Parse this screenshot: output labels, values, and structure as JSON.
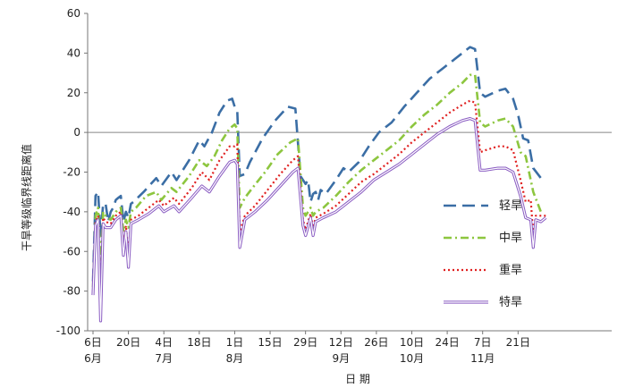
{
  "chart_data": {
    "type": "line",
    "ylabel": "干旱等级临界线距离值",
    "xlabel": "日 期",
    "ylim": [
      -100,
      60
    ],
    "yticks": [
      60,
      40,
      20,
      0,
      -20,
      -40,
      -60,
      -80,
      -100
    ],
    "xlim": [
      "06-06",
      "12-28"
    ],
    "xticks": [
      {
        "date": "06-06",
        "day": "6日",
        "month": "6月"
      },
      {
        "date": "06-20",
        "day": "20日",
        "month": ""
      },
      {
        "date": "07-04",
        "day": "4日",
        "month": "7月"
      },
      {
        "date": "07-18",
        "day": "18日",
        "month": ""
      },
      {
        "date": "08-01",
        "day": "1日",
        "month": "8月"
      },
      {
        "date": "08-15",
        "day": "15日",
        "month": ""
      },
      {
        "date": "08-29",
        "day": "29日",
        "month": ""
      },
      {
        "date": "09-12",
        "day": "12日",
        "month": "9月"
      },
      {
        "date": "09-26",
        "day": "26日",
        "month": ""
      },
      {
        "date": "10-10",
        "day": "10日",
        "month": "10月"
      },
      {
        "date": "10-24",
        "day": "24日",
        "month": ""
      },
      {
        "date": "11-07",
        "day": "7日",
        "month": "11月"
      },
      {
        "date": "11-21",
        "day": "21日",
        "month": ""
      }
    ],
    "legend_position": "right",
    "series": [
      {
        "name": "轻旱",
        "color": "#3b6ea5",
        "dash": "long-dash",
        "points": [
          [
            "06-06",
            -75
          ],
          [
            "06-07",
            -32
          ],
          [
            "06-08",
            -30
          ],
          [
            "06-09",
            -52
          ],
          [
            "06-10",
            -36
          ],
          [
            "06-11",
            -36
          ],
          [
            "06-12",
            -45
          ],
          [
            "06-13",
            -40
          ],
          [
            "06-14",
            -38
          ],
          [
            "06-15",
            -34
          ],
          [
            "06-16",
            -33
          ],
          [
            "06-17",
            -32
          ],
          [
            "06-18",
            -45
          ],
          [
            "06-19",
            -40
          ],
          [
            "06-20",
            -43
          ],
          [
            "06-21",
            -36
          ],
          [
            "06-22",
            -35
          ],
          [
            "06-26",
            -30
          ],
          [
            "07-01",
            -23
          ],
          [
            "07-03",
            -27
          ],
          [
            "07-07",
            -20
          ],
          [
            "07-09",
            -24
          ],
          [
            "07-14",
            -14
          ],
          [
            "07-18",
            -4
          ],
          [
            "07-20",
            -7
          ],
          [
            "07-23",
            0
          ],
          [
            "07-26",
            10
          ],
          [
            "07-29",
            16
          ],
          [
            "07-31",
            17
          ],
          [
            "08-01",
            13
          ],
          [
            "08-02",
            11
          ],
          [
            "08-03",
            -22
          ],
          [
            "08-05",
            -21
          ],
          [
            "08-07",
            -15
          ],
          [
            "08-12",
            -3
          ],
          [
            "08-17",
            6
          ],
          [
            "08-22",
            13
          ],
          [
            "08-25",
            12
          ],
          [
            "08-27",
            -22
          ],
          [
            "08-29",
            -26
          ],
          [
            "08-30",
            -24
          ],
          [
            "08-31",
            -35
          ],
          [
            "09-01",
            -31
          ],
          [
            "09-02",
            -30
          ],
          [
            "09-03",
            -34
          ],
          [
            "09-04",
            -29
          ],
          [
            "09-06",
            -31
          ],
          [
            "09-10",
            -24
          ],
          [
            "09-13",
            -18
          ],
          [
            "09-15",
            -20
          ],
          [
            "09-19",
            -15
          ],
          [
            "09-23",
            -7
          ],
          [
            "09-27",
            0
          ],
          [
            "10-02",
            5
          ],
          [
            "10-07",
            13
          ],
          [
            "10-12",
            20
          ],
          [
            "10-17",
            27
          ],
          [
            "10-22",
            32
          ],
          [
            "10-27",
            37
          ],
          [
            "11-01",
            42
          ],
          [
            "11-02",
            43
          ],
          [
            "11-04",
            42
          ],
          [
            "11-06",
            20
          ],
          [
            "11-08",
            18
          ],
          [
            "11-13",
            21
          ],
          [
            "11-16",
            22
          ],
          [
            "11-19",
            17
          ],
          [
            "11-21",
            9
          ],
          [
            "11-23",
            -3
          ],
          [
            "11-25",
            -4
          ],
          [
            "11-27",
            -18
          ],
          [
            "11-30",
            -23
          ],
          [
            "12-02",
            -24
          ]
        ]
      },
      {
        "name": "中旱",
        "color": "#8dc63f",
        "dash": "dash-dot",
        "points": [
          [
            "06-06",
            -78
          ],
          [
            "06-07",
            -42
          ],
          [
            "06-08",
            -38
          ],
          [
            "06-09",
            -68
          ],
          [
            "06-10",
            -40
          ],
          [
            "06-11",
            -42
          ],
          [
            "06-13",
            -44
          ],
          [
            "06-15",
            -40
          ],
          [
            "06-17",
            -38
          ],
          [
            "06-18",
            -50
          ],
          [
            "06-19",
            -44
          ],
          [
            "06-20",
            -48
          ],
          [
            "06-21",
            -40
          ],
          [
            "06-23",
            -38
          ],
          [
            "06-27",
            -32
          ],
          [
            "07-01",
            -30
          ],
          [
            "07-03",
            -34
          ],
          [
            "07-07",
            -28
          ],
          [
            "07-09",
            -30
          ],
          [
            "07-14",
            -22
          ],
          [
            "07-18",
            -14
          ],
          [
            "07-21",
            -17
          ],
          [
            "07-24",
            -12
          ],
          [
            "07-27",
            -4
          ],
          [
            "07-30",
            2
          ],
          [
            "08-01",
            4
          ],
          [
            "08-02",
            2
          ],
          [
            "08-03",
            -38
          ],
          [
            "08-05",
            -33
          ],
          [
            "08-08",
            -28
          ],
          [
            "08-13",
            -20
          ],
          [
            "08-18",
            -11
          ],
          [
            "08-23",
            -5
          ],
          [
            "08-26",
            -3
          ],
          [
            "08-28",
            -38
          ],
          [
            "08-29",
            -42
          ],
          [
            "08-31",
            -38
          ],
          [
            "09-01",
            -42
          ],
          [
            "09-02",
            -40
          ],
          [
            "09-05",
            -38
          ],
          [
            "09-10",
            -32
          ],
          [
            "09-15",
            -25
          ],
          [
            "09-20",
            -19
          ],
          [
            "09-25",
            -14
          ],
          [
            "09-30",
            -9
          ],
          [
            "10-05",
            -4
          ],
          [
            "10-10",
            3
          ],
          [
            "10-15",
            9
          ],
          [
            "10-20",
            14
          ],
          [
            "10-25",
            20
          ],
          [
            "10-30",
            25
          ],
          [
            "11-02",
            29
          ],
          [
            "11-04",
            29
          ],
          [
            "11-06",
            5
          ],
          [
            "11-08",
            3
          ],
          [
            "11-13",
            6
          ],
          [
            "11-16",
            7
          ],
          [
            "11-19",
            3
          ],
          [
            "11-22",
            -10
          ],
          [
            "11-24",
            -12
          ],
          [
            "11-27",
            -30
          ],
          [
            "11-30",
            -40
          ]
        ]
      },
      {
        "name": "重旱",
        "color": "#e02020",
        "dash": "dotted",
        "points": [
          [
            "06-06",
            -80
          ],
          [
            "06-07",
            -45
          ],
          [
            "06-08",
            -42
          ],
          [
            "06-09",
            -85
          ],
          [
            "06-10",
            -43
          ],
          [
            "06-11",
            -45
          ],
          [
            "06-13",
            -46
          ],
          [
            "06-15",
            -42
          ],
          [
            "06-17",
            -40
          ],
          [
            "06-18",
            -58
          ],
          [
            "06-19",
            -47
          ],
          [
            "06-20",
            -62
          ],
          [
            "06-21",
            -44
          ],
          [
            "06-24",
            -42
          ],
          [
            "06-28",
            -38
          ],
          [
            "07-02",
            -34
          ],
          [
            "07-04",
            -37
          ],
          [
            "07-08",
            -33
          ],
          [
            "07-10",
            -36
          ],
          [
            "07-15",
            -28
          ],
          [
            "07-19",
            -20
          ],
          [
            "07-22",
            -24
          ],
          [
            "07-26",
            -14
          ],
          [
            "07-30",
            -7
          ],
          [
            "08-01",
            -7
          ],
          [
            "08-02",
            -6
          ],
          [
            "08-03",
            -50
          ],
          [
            "08-05",
            -42
          ],
          [
            "08-09",
            -37
          ],
          [
            "08-14",
            -29
          ],
          [
            "08-19",
            -21
          ],
          [
            "08-24",
            -14
          ],
          [
            "08-26",
            -12
          ],
          [
            "08-28",
            -44
          ],
          [
            "08-29",
            -49
          ],
          [
            "08-31",
            -41
          ],
          [
            "09-01",
            -48
          ],
          [
            "09-02",
            -43
          ],
          [
            "09-05",
            -41
          ],
          [
            "09-10",
            -37
          ],
          [
            "09-15",
            -31
          ],
          [
            "09-20",
            -25
          ],
          [
            "09-25",
            -21
          ],
          [
            "09-30",
            -16
          ],
          [
            "10-05",
            -11
          ],
          [
            "10-10",
            -5
          ],
          [
            "10-15",
            0
          ],
          [
            "10-20",
            5
          ],
          [
            "10-25",
            10
          ],
          [
            "10-30",
            14
          ],
          [
            "11-02",
            16
          ],
          [
            "11-04",
            15
          ],
          [
            "11-06",
            -10
          ],
          [
            "11-08",
            -9
          ],
          [
            "11-13",
            -7
          ],
          [
            "11-16",
            -7
          ],
          [
            "11-19",
            -9
          ],
          [
            "11-22",
            -24
          ],
          [
            "11-24",
            -35
          ],
          [
            "11-26",
            -34
          ],
          [
            "11-27",
            -52
          ],
          [
            "11-28",
            -42
          ],
          [
            "11-30",
            -42
          ],
          [
            "12-02",
            -42
          ]
        ]
      },
      {
        "name": "特旱",
        "color": "#8a5cc2",
        "dash": "double",
        "points": [
          [
            "06-06",
            -82
          ],
          [
            "06-07",
            -47
          ],
          [
            "06-08",
            -44
          ],
          [
            "06-09",
            -95
          ],
          [
            "06-10",
            -46
          ],
          [
            "06-11",
            -48
          ],
          [
            "06-13",
            -48
          ],
          [
            "06-15",
            -44
          ],
          [
            "06-17",
            -42
          ],
          [
            "06-18",
            -62
          ],
          [
            "06-19",
            -50
          ],
          [
            "06-20",
            -68
          ],
          [
            "06-21",
            -46
          ],
          [
            "06-24",
            -44
          ],
          [
            "06-28",
            -41
          ],
          [
            "07-02",
            -37
          ],
          [
            "07-04",
            -40
          ],
          [
            "07-08",
            -37
          ],
          [
            "07-10",
            -40
          ],
          [
            "07-15",
            -33
          ],
          [
            "07-19",
            -27
          ],
          [
            "07-22",
            -30
          ],
          [
            "07-26",
            -22
          ],
          [
            "07-30",
            -15
          ],
          [
            "08-01",
            -14
          ],
          [
            "08-02",
            -16
          ],
          [
            "08-03",
            -58
          ],
          [
            "08-05",
            -44
          ],
          [
            "08-09",
            -40
          ],
          [
            "08-14",
            -34
          ],
          [
            "08-19",
            -27
          ],
          [
            "08-24",
            -20
          ],
          [
            "08-26",
            -18
          ],
          [
            "08-28",
            -47
          ],
          [
            "08-29",
            -52
          ],
          [
            "08-31",
            -43
          ],
          [
            "09-01",
            -52
          ],
          [
            "09-02",
            -45
          ],
          [
            "09-05",
            -43
          ],
          [
            "09-10",
            -40
          ],
          [
            "09-15",
            -35
          ],
          [
            "09-20",
            -30
          ],
          [
            "09-25",
            -24
          ],
          [
            "09-30",
            -20
          ],
          [
            "10-05",
            -16
          ],
          [
            "10-10",
            -11
          ],
          [
            "10-15",
            -6
          ],
          [
            "10-20",
            -1
          ],
          [
            "10-25",
            3
          ],
          [
            "10-30",
            6
          ],
          [
            "11-02",
            7
          ],
          [
            "11-04",
            6
          ],
          [
            "11-06",
            -19
          ],
          [
            "11-08",
            -19
          ],
          [
            "11-13",
            -18
          ],
          [
            "11-16",
            -18
          ],
          [
            "11-19",
            -20
          ],
          [
            "11-22",
            -32
          ],
          [
            "11-24",
            -43
          ],
          [
            "11-26",
            -44
          ],
          [
            "11-27",
            -58
          ],
          [
            "11-28",
            -44
          ],
          [
            "11-30",
            -45
          ],
          [
            "12-02",
            -43
          ]
        ]
      }
    ]
  }
}
